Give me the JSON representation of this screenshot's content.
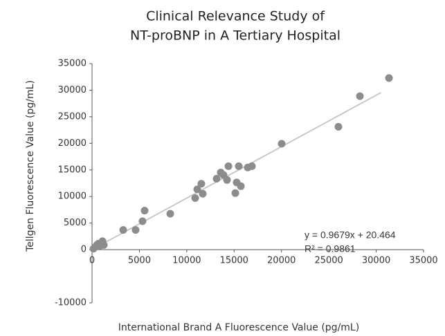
{
  "chart_data": {
    "type": "scatter",
    "title": [
      "Clinical Relevance Study of",
      "NT-proBNP in A Tertiary Hospital"
    ],
    "x_label": "International Brand A Fluorescence Value (pg/mL)",
    "y_label": "Tellgen Fluorescence Value (pg/mL)",
    "annotations": [
      "y = 0.9679x + 20.464",
      "R² = 0.9861"
    ],
    "color": "#8c8c8c",
    "trendline": {
      "slope": 0.9679,
      "intercept": 20.464,
      "x": [
        0,
        30500
      ],
      "color": "#c8c8c8"
    },
    "x": [
      150,
      365,
      510,
      660,
      880,
      1020,
      1100,
      1240,
      3290,
      4600,
      5330,
      5550,
      8260,
      10890,
      11110,
      11540,
      11690,
      13150,
      13590,
      13880,
      14250,
      14400,
      15130,
      15270,
      15490,
      15710,
      16440,
      16880,
      20020,
      26010,
      28280,
      31350
    ],
    "values": [
      180,
      530,
      880,
      1120,
      760,
      1350,
      1590,
      880,
      3700,
      3700,
      5350,
      7350,
      6760,
      9700,
      11350,
      12400,
      10520,
      13350,
      14520,
      14050,
      13110,
      15700,
      10640,
      12640,
      15700,
      11940,
      15460,
      15700,
      19930,
      23110,
      28870,
      32280
    ],
    "xlim": [
      0,
      35000
    ],
    "xticks": [
      0,
      5000,
      10000,
      15000,
      20000,
      25000,
      30000,
      35000
    ],
    "ylim": [
      -10000,
      35000
    ],
    "yticks": [
      -10000,
      0,
      5000,
      10000,
      15000,
      20000,
      25000,
      30000,
      35000
    ]
  }
}
